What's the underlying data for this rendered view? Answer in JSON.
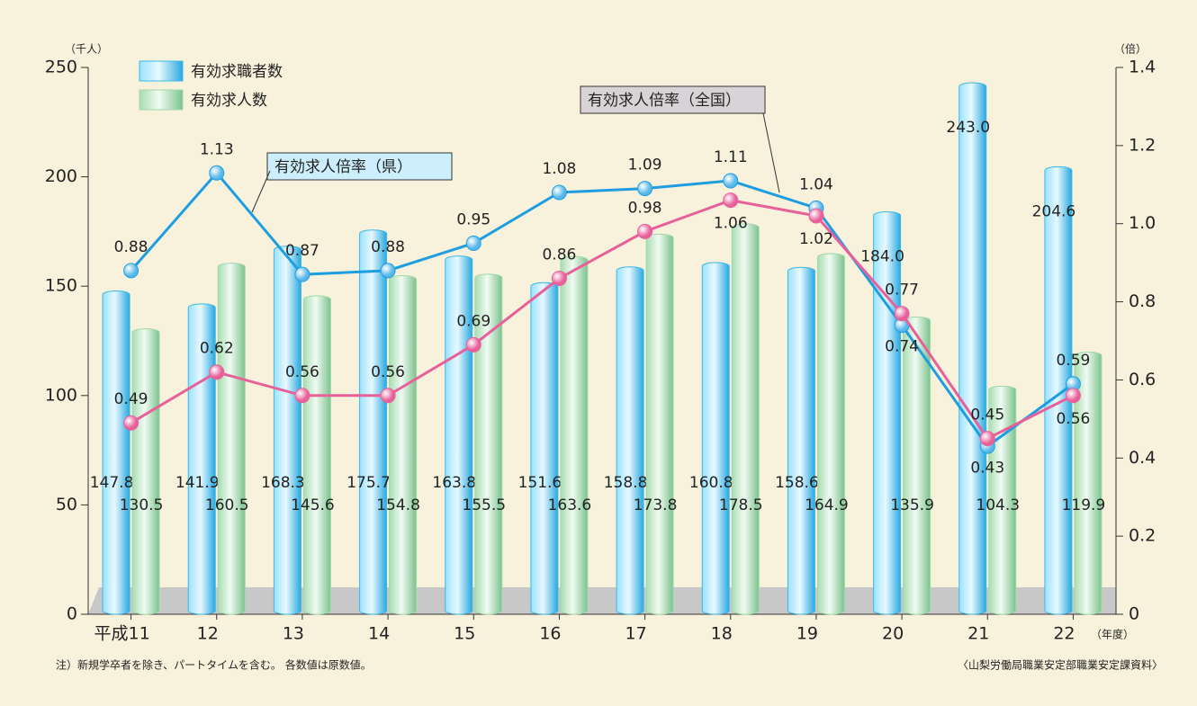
{
  "chart_data": {
    "type": "bar",
    "y_axis_label": "（千人）",
    "y2_axis_label": "（倍）",
    "x_axis_label": "（年度）",
    "categories": [
      "平成11",
      "12",
      "13",
      "14",
      "15",
      "16",
      "17",
      "18",
      "19",
      "20",
      "21",
      "22"
    ],
    "series": [
      {
        "name": "有効求職者数",
        "type": "bar",
        "color": "#3cb8e8",
        "values": [
          147.8,
          141.9,
          168.3,
          175.7,
          163.8,
          151.6,
          158.8,
          160.8,
          158.6,
          184.0,
          243.0,
          204.6
        ],
        "value_labels": [
          "147.8",
          "141.9",
          "168.3",
          "175.7",
          "163.8",
          "151.6",
          "158.8",
          "160.8",
          "158.6",
          "184.0",
          "243.0",
          "204.6"
        ]
      },
      {
        "name": "有効求人数",
        "type": "bar",
        "color": "#9fd9a8",
        "values": [
          130.5,
          160.5,
          145.6,
          154.8,
          155.5,
          163.6,
          173.8,
          178.5,
          164.9,
          135.9,
          104.3,
          119.9
        ],
        "value_labels": [
          "130.5",
          "160.5",
          "145.6",
          "154.8",
          "155.5",
          "163.6",
          "173.8",
          "178.5",
          "164.9",
          "135.9",
          "104.3",
          "119.9"
        ]
      },
      {
        "name": "有効求人倍率（県）",
        "type": "line",
        "axis": "y2",
        "color": "#1e9ee0",
        "values": [
          0.88,
          1.13,
          0.87,
          0.88,
          0.95,
          1.08,
          1.09,
          1.11,
          1.04,
          0.74,
          0.43,
          0.59
        ]
      },
      {
        "name": "有効求人倍率（全国）",
        "type": "line",
        "axis": "y2",
        "color": "#e8609a",
        "values": [
          0.49,
          0.62,
          0.56,
          0.56,
          0.69,
          0.86,
          0.98,
          1.06,
          1.02,
          0.77,
          0.45,
          0.56
        ]
      }
    ],
    "ylim": [
      0,
      250
    ],
    "yticks": [
      0,
      50,
      100,
      150,
      200,
      250
    ],
    "y2lim": [
      0,
      1.4
    ],
    "y2ticks": [
      0,
      0.2,
      0.4,
      0.6,
      0.8,
      {
        "value": 1,
        "label": "1.0"
      },
      1.2,
      1.4
    ],
    "note": "注）新規学卒者を除き、パートタイムを含む。 各数値は原数値。",
    "source": "〈山梨労働局職業安定部職業安定課資料〉"
  }
}
